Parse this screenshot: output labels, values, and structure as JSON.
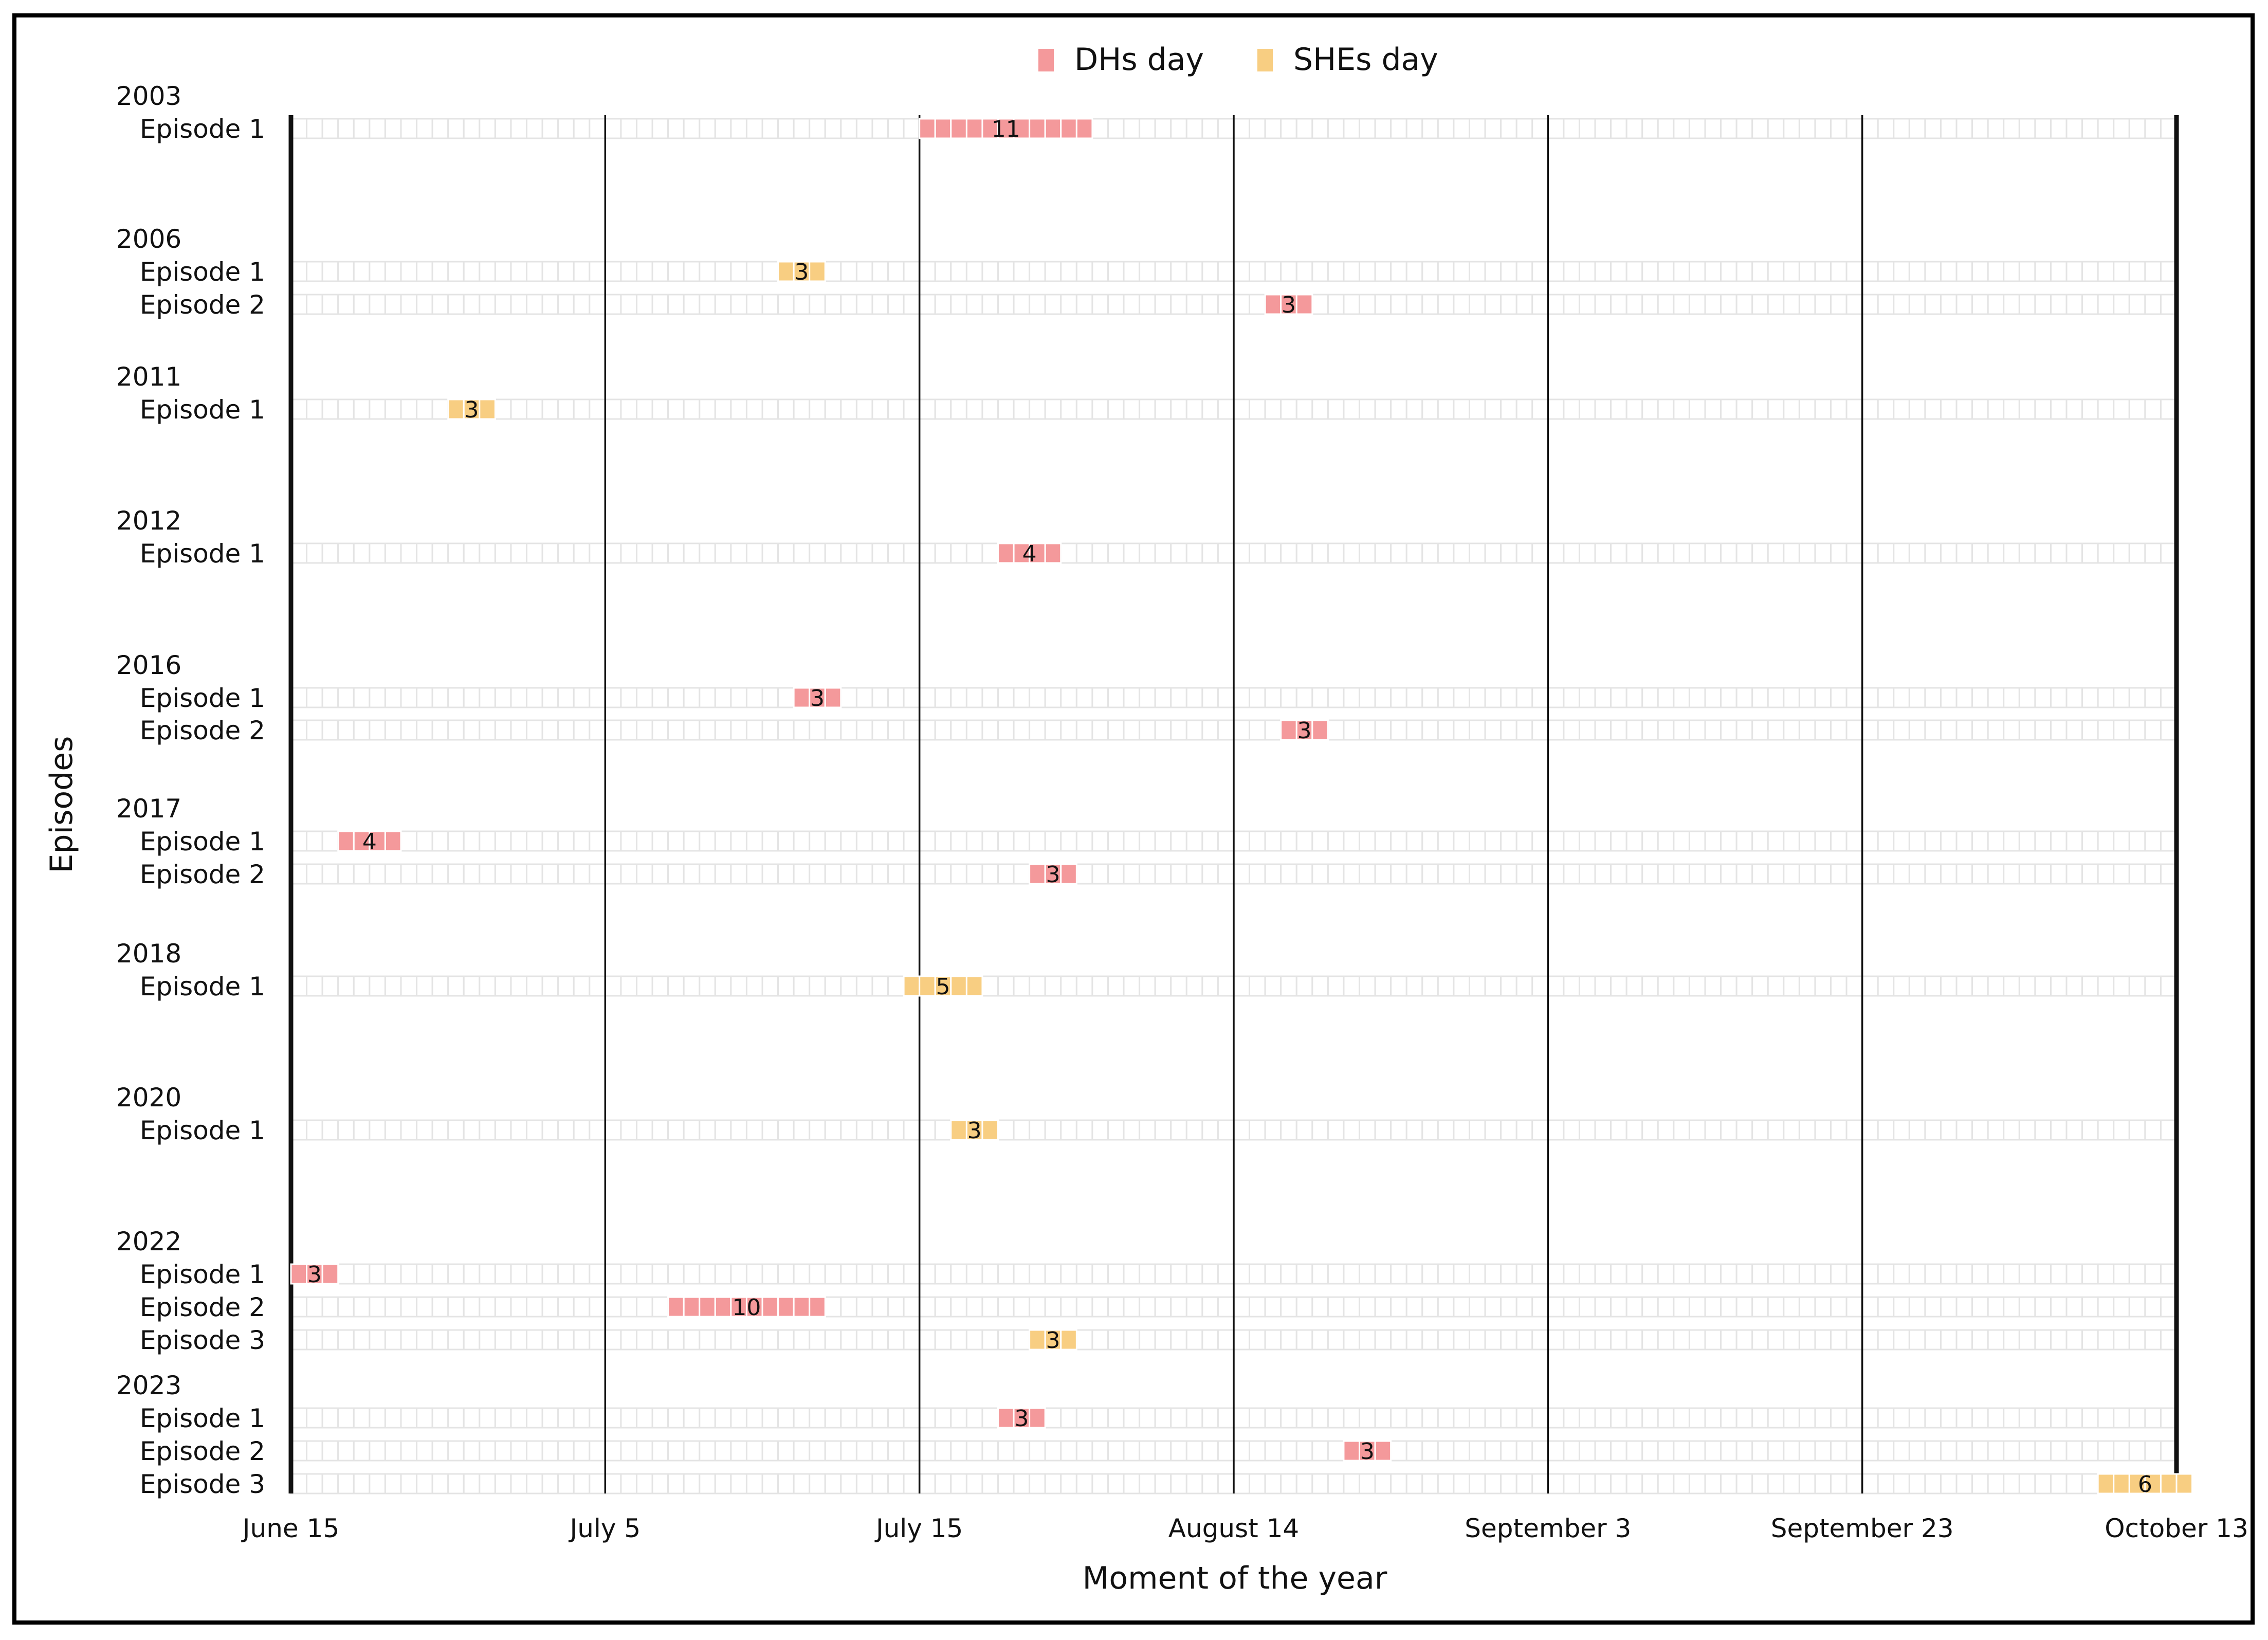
{
  "chart_data": {
    "type": "timeline",
    "title": "",
    "xlabel": "Moment of the year",
    "ylabel": "Episodes",
    "x_tick_labels": [
      "June 15",
      "July 5",
      "July 15",
      "August 14",
      "September 3",
      "September 23",
      "October 13"
    ],
    "legend": [
      {
        "label": "DHs day",
        "color": "#f4999b",
        "key": "dh"
      },
      {
        "label": "SHEs day",
        "color": "#f8ce82",
        "key": "she"
      }
    ],
    "legend_position": "top-center",
    "grid": true,
    "groups": [
      {
        "year": "2003",
        "episodes": [
          {
            "label": "Episode 1",
            "type": "dh",
            "start": "July 25",
            "days": 11,
            "count_label": "11"
          }
        ]
      },
      {
        "year": "2006",
        "episodes": [
          {
            "label": "Episode 1",
            "type": "she",
            "start": "July 16",
            "days": 3,
            "count_label": "3"
          },
          {
            "label": "Episode 2",
            "type": "dh",
            "start": "August 16",
            "days": 3,
            "count_label": "3"
          }
        ]
      },
      {
        "year": "2011",
        "episodes": [
          {
            "label": "Episode 1",
            "type": "she",
            "start": "June 25",
            "days": 3,
            "count_label": "3"
          }
        ]
      },
      {
        "year": "2012",
        "episodes": [
          {
            "label": "Episode 1",
            "type": "dh",
            "start": "July 30",
            "days": 4,
            "count_label": "4"
          }
        ]
      },
      {
        "year": "2016",
        "episodes": [
          {
            "label": "Episode 1",
            "type": "dh",
            "start": "July 17",
            "days": 3,
            "count_label": "3"
          },
          {
            "label": "Episode 2",
            "type": "dh",
            "start": "August 17",
            "days": 3,
            "count_label": "3"
          }
        ]
      },
      {
        "year": "2017",
        "episodes": [
          {
            "label": "Episode 1",
            "type": "dh",
            "start": "June 18",
            "days": 4,
            "count_label": "4"
          },
          {
            "label": "Episode 2",
            "type": "dh",
            "start": "August 1",
            "days": 3,
            "count_label": "3"
          }
        ]
      },
      {
        "year": "2018",
        "episodes": [
          {
            "label": "Episode 1",
            "type": "she",
            "start": "July 24",
            "days": 5,
            "count_label": "5"
          }
        ]
      },
      {
        "year": "2020",
        "episodes": [
          {
            "label": "Episode 1",
            "type": "she",
            "start": "July 27",
            "days": 3,
            "count_label": "3"
          }
        ]
      },
      {
        "year": "2022",
        "episodes": [
          {
            "label": "Episode 1",
            "type": "dh",
            "start": "June 15",
            "days": 3,
            "count_label": "3"
          },
          {
            "label": "Episode 2",
            "type": "dh",
            "start": "July 9",
            "days": 10,
            "count_label": "10"
          },
          {
            "label": "Episode 3",
            "type": "she",
            "start": "August 1",
            "days": 3,
            "count_label": "3"
          }
        ]
      },
      {
        "year": "2023",
        "episodes": [
          {
            "label": "Episode 1",
            "type": "dh",
            "start": "July 30",
            "days": 3,
            "count_label": "3"
          },
          {
            "label": "Episode 2",
            "type": "dh",
            "start": "August 21",
            "days": 3,
            "count_label": "3"
          },
          {
            "label": "Episode 3",
            "type": "she",
            "start": "October 8",
            "days": 6,
            "count_label": "6"
          }
        ]
      }
    ]
  }
}
